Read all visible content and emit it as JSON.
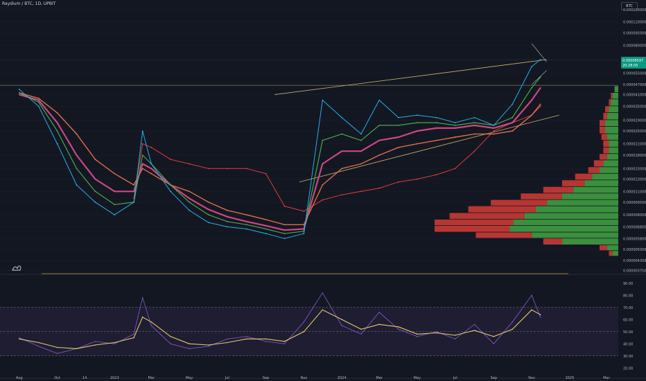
{
  "header": {
    "symbol_title": "Raydium / BTC, 1D, UPBIT",
    "currency": "BTC"
  },
  "price_tag": {
    "value": "0.00006597",
    "countdown": "20:28:05"
  },
  "colors": {
    "background": "#131722",
    "ema_pink": "#d64a8a",
    "ema_green": "#4caf50",
    "price_cyan": "#29b6f6",
    "vwap_red": "#ef3d3d",
    "trendline": "#c9b86b",
    "rsi_line": "#7e57c2",
    "rsi_ma": "#e6c96a",
    "vp_up": "#3f9a41",
    "vp_down": "#c43a35",
    "tag": "#089981"
  },
  "chart_data": [
    {
      "type": "line",
      "title": "Raydium / BTC, 1D, UPBIT",
      "y_scale": "log",
      "ylim": [
        3.7e-06,
        0.000135
      ],
      "price_ticks": [
        "0.000130000",
        "0.000110000",
        "0.000095000",
        "0.000080000",
        "0.000065000",
        "0.000055000",
        "0.000047000",
        "0.000041000",
        "0.000035000",
        "0.000029000",
        "0.000025000",
        "0.000021000",
        "0.000018000",
        "0.000015000",
        "0.000013000",
        "0.000011000",
        "0.000009500",
        "0.000008000",
        "0.000006800",
        "0.000005800",
        "0.000005000",
        "0.000004300",
        "0.000003750"
      ],
      "x_ticks": [
        "Aug",
        "Oct",
        "14",
        "2023",
        "Mar",
        "May",
        "Jul",
        "Sep",
        "Nov",
        "2024",
        "Mar",
        "May",
        "Jul",
        "Sep",
        "Nov",
        "2025",
        "Mar"
      ],
      "x_dates": [
        "2022-08-01",
        "2022-09-01",
        "2022-10-01",
        "2022-11-01",
        "2022-12-01",
        "2023-01-01",
        "2023-02-01",
        "2023-02-15",
        "2023-03-01",
        "2023-04-01",
        "2023-05-01",
        "2023-06-01",
        "2023-07-01",
        "2023-08-01",
        "2023-09-01",
        "2023-10-01",
        "2023-11-01",
        "2023-12-01",
        "2024-01-01",
        "2024-02-01",
        "2024-03-01",
        "2024-04-01",
        "2024-05-01",
        "2024-06-01",
        "2024-07-01",
        "2024-08-01",
        "2024-09-01",
        "2024-10-01",
        "2024-11-01",
        "2024-11-15"
      ],
      "series": [
        {
          "values": [
            4.4e-05,
            3.5e-05,
            2.1e-05,
            1.2e-05,
            9.5e-06,
            8e-06,
            9.5e-06,
            2.5e-05,
            1.6e-05,
            1.1e-05,
            8.5e-06,
            7.2e-06,
            6.8e-06,
            6.6e-06,
            6.2e-06,
            5.8e-06,
            6.2e-06,
            3.8e-05,
            3e-05,
            2.4e-05,
            3.8e-05,
            3e-05,
            3.1e-05,
            3e-05,
            2.8e-05,
            3e-05,
            2.7e-05,
            3.6e-05,
            6e-05,
            6.6e-05
          ]
        },
        {
          "values": [
            4.2e-05,
            3.7e-05,
            2.5e-05,
            1.5e-05,
            1.1e-05,
            9.2e-06,
            9.5e-06,
            1.8e-05,
            1.6e-05,
            1.2e-05,
            9.5e-06,
            8e-06,
            7.3e-06,
            7e-06,
            6.6e-06,
            6.2e-06,
            6.4e-06,
            2.2e-05,
            2.4e-05,
            2.2e-05,
            2.7e-05,
            2.7e-05,
            2.8e-05,
            2.8e-05,
            2.7e-05,
            2.8e-05,
            2.7e-05,
            3e-05,
            4.5e-05,
            5.2e-05
          ]
        },
        {
          "values": [
            4.1e-05,
            3.8e-05,
            2.8e-05,
            1.8e-05,
            1.3e-05,
            1.1e-05,
            1.1e-05,
            1.6e-05,
            1.5e-05,
            1.2e-05,
            1e-05,
            8.6e-06,
            7.8e-06,
            7.3e-06,
            6.9e-06,
            6.5e-06,
            6.6e-06,
            1.6e-05,
            1.9e-05,
            1.9e-05,
            2.2e-05,
            2.3e-05,
            2.5e-05,
            2.6e-05,
            2.6e-05,
            2.7e-05,
            2.6e-05,
            2.8e-05,
            3.8e-05,
            4.5e-05
          ]
        },
        {
          "values": [
            4.2e-05,
            3.9e-05,
            3.2e-05,
            2.4e-05,
            1.7e-05,
            1.4e-05,
            1.2e-05,
            1.5e-05,
            1.4e-05,
            1.2e-05,
            1.1e-05,
            9.5e-06,
            8.5e-06,
            8e-06,
            7.5e-06,
            7e-06,
            7e-06,
            1.2e-05,
            1.5e-05,
            1.6e-05,
            1.8e-05,
            2e-05,
            2.1e-05,
            2.2e-05,
            2.3e-05,
            2.4e-05,
            2.4e-05,
            2.5e-05,
            3.1e-05,
            3.6e-05
          ]
        },
        {
          "values": [
            null,
            null,
            null,
            null,
            null,
            null,
            1e-05,
            2.1e-05,
            2e-05,
            1.7e-05,
            1.6e-05,
            1.5e-05,
            1.5e-05,
            1.5e-05,
            1.4e-05,
            9e-06,
            8.4e-06,
            9.8e-06,
            1.05e-05,
            1.1e-05,
            1.15e-05,
            1.25e-05,
            1.3e-05,
            1.38e-05,
            1.5e-05,
            1.9e-05,
            2.5e-05,
            2.8e-05,
            3.1e-05,
            3.5e-05
          ]
        }
      ]
    },
    {
      "type": "bar",
      "title": "Volume profile",
      "orientation": "horizontal",
      "price_levels": [
        4.6e-05,
        4.2e-05,
        3.85e-05,
        3.5e-05,
        3.2e-05,
        2.9e-05,
        2.65e-05,
        2.4e-05,
        2.2e-05,
        2e-05,
        1.83e-05,
        1.68e-05,
        1.53e-05,
        1.4e-05,
        1.28e-05,
        1.17e-05,
        1.07e-05,
        9.8e-06,
        9e-06,
        8.2e-06,
        7.5e-06,
        6.9e-06,
        6.3e-06,
        5.8e-06,
        5.3e-06,
        4.9e-06
      ],
      "series": [
        {
          "values": [
            2,
            3,
            4,
            5,
            6,
            7,
            7,
            6,
            5,
            5,
            6,
            8,
            10,
            14,
            18,
            24,
            30,
            38,
            44,
            50,
            56,
            58,
            46,
            30,
            6,
            3
          ]
        },
        {
          "values": [
            0,
            1,
            1,
            2,
            2,
            3,
            3,
            3,
            3,
            3,
            4,
            5,
            6,
            9,
            12,
            16,
            22,
            30,
            36,
            40,
            42,
            40,
            30,
            10,
            4,
            2
          ]
        }
      ]
    },
    {
      "type": "line",
      "title": "RSI",
      "ylim": [
        15,
        95
      ],
      "y_ticks": [
        "90.00",
        "80.00",
        "70.00",
        "60.00",
        "50.00",
        "40.00",
        "30.00",
        "20.00"
      ],
      "band": [
        30,
        70
      ],
      "x": [
        "2022-08-01",
        "2022-09-01",
        "2022-10-01",
        "2022-11-01",
        "2022-12-01",
        "2023-01-01",
        "2023-02-01",
        "2023-02-15",
        "2023-03-01",
        "2023-04-01",
        "2023-05-01",
        "2023-06-01",
        "2023-07-01",
        "2023-08-01",
        "2023-09-01",
        "2023-10-01",
        "2023-11-01",
        "2023-12-01",
        "2024-01-01",
        "2024-02-01",
        "2024-03-01",
        "2024-04-01",
        "2024-05-01",
        "2024-06-01",
        "2024-07-01",
        "2024-08-01",
        "2024-09-01",
        "2024-10-01",
        "2024-11-01",
        "2024-11-15"
      ],
      "series": [
        {
          "values": [
            45,
            38,
            32,
            36,
            42,
            40,
            48,
            78,
            55,
            40,
            36,
            38,
            44,
            46,
            42,
            40,
            58,
            82,
            55,
            48,
            66,
            52,
            46,
            50,
            44,
            56,
            40,
            58,
            80,
            62
          ]
        },
        {
          "values": [
            44,
            41,
            37,
            36,
            39,
            41,
            45,
            62,
            58,
            46,
            40,
            39,
            41,
            44,
            44,
            42,
            50,
            68,
            60,
            52,
            56,
            54,
            48,
            49,
            47,
            51,
            46,
            52,
            68,
            64
          ]
        }
      ]
    }
  ]
}
